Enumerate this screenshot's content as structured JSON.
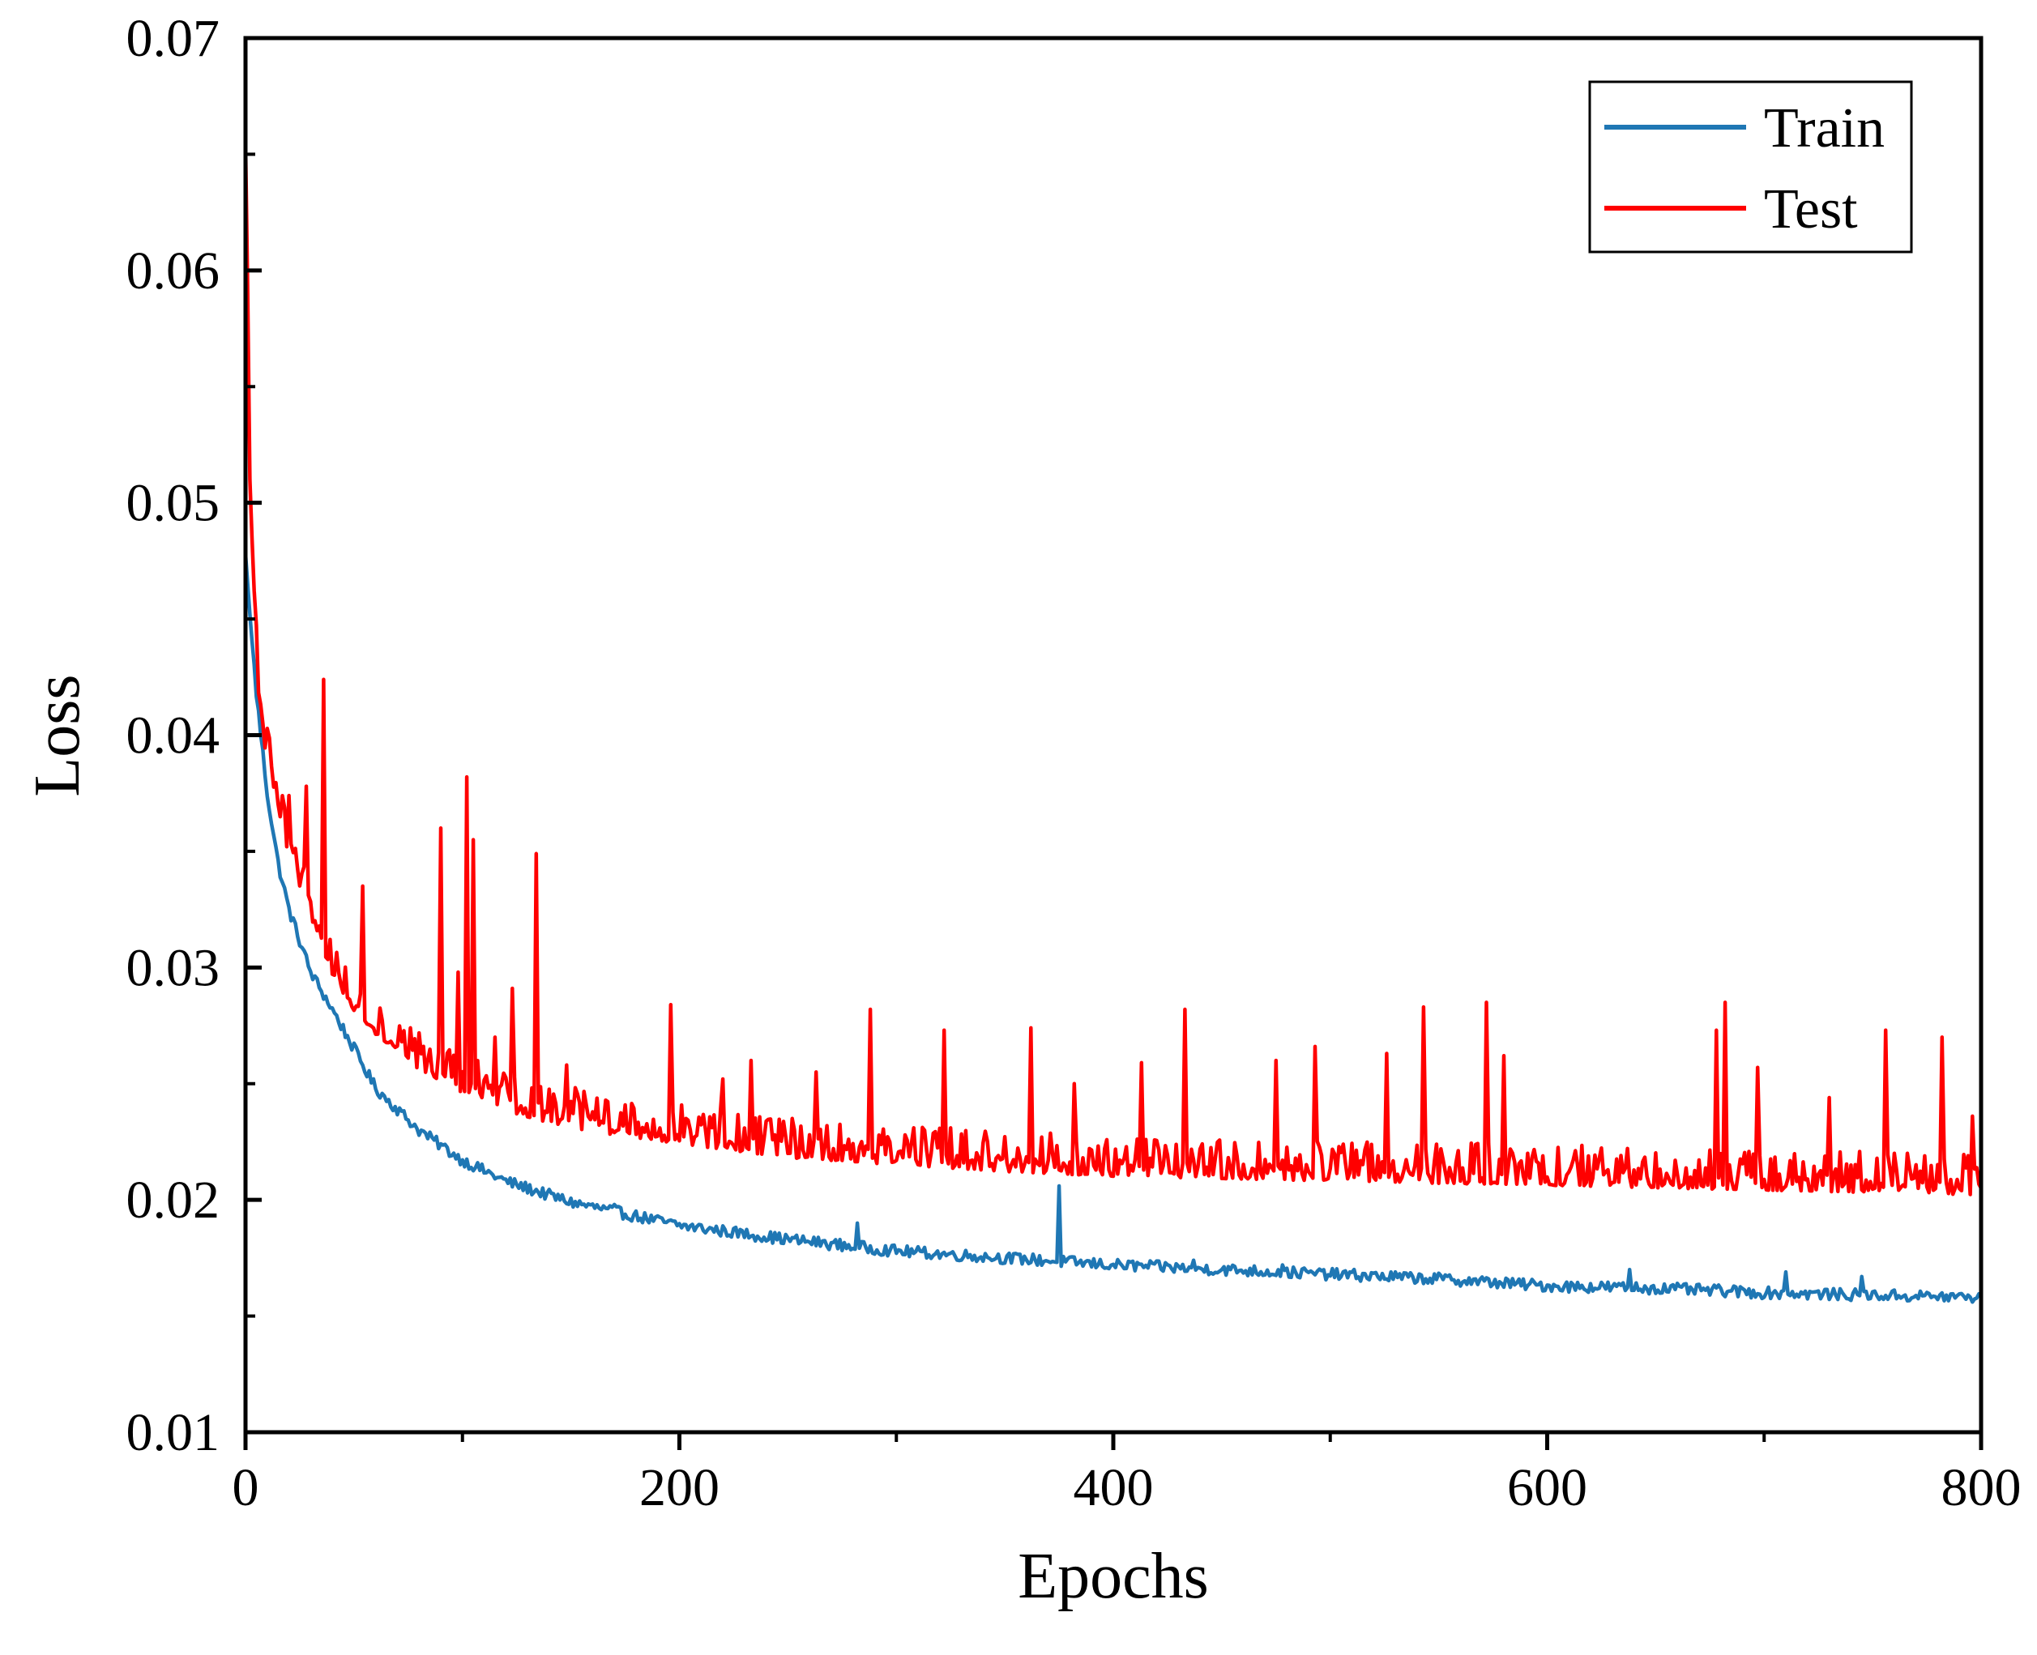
{
  "chart_data": {
    "type": "line",
    "title": "",
    "xlabel": "Epochs",
    "ylabel": "Loss",
    "xlim": [
      0,
      800
    ],
    "ylim": [
      0.01,
      0.07
    ],
    "xticks": [
      0,
      200,
      400,
      600,
      800
    ],
    "xtick_labels": [
      "0",
      "200",
      "400",
      "600",
      "800"
    ],
    "yticks": [
      0.01,
      0.02,
      0.03,
      0.04,
      0.05,
      0.06,
      0.07
    ],
    "ytick_labels": [
      "0.01",
      "0.02",
      "0.03",
      "0.04",
      "0.05",
      "0.06",
      "0.07"
    ],
    "x_minor_step": 100,
    "y_minor_step": 0.005,
    "grid": false,
    "legend_position": "top-right",
    "series": [
      {
        "name": "Train",
        "color": "#1f77b4",
        "anchors": [
          [
            0,
            0.0478
          ],
          [
            2,
            0.0452
          ],
          [
            5,
            0.0418
          ],
          [
            10,
            0.0375
          ],
          [
            15,
            0.0345
          ],
          [
            20,
            0.0325
          ],
          [
            30,
            0.0298
          ],
          [
            40,
            0.0282
          ],
          [
            50,
            0.0265
          ],
          [
            60,
            0.0248
          ],
          [
            80,
            0.023
          ],
          [
            100,
            0.0217
          ],
          [
            120,
            0.0208
          ],
          [
            150,
            0.0199
          ],
          [
            200,
            0.0189
          ],
          [
            250,
            0.0183
          ],
          [
            300,
            0.0178
          ],
          [
            350,
            0.0175
          ],
          [
            400,
            0.0172
          ],
          [
            450,
            0.017
          ],
          [
            500,
            0.0168
          ],
          [
            550,
            0.0166
          ],
          [
            600,
            0.0163
          ],
          [
            650,
            0.0162
          ],
          [
            700,
            0.016
          ],
          [
            750,
            0.0159
          ],
          [
            800,
            0.0158
          ]
        ],
        "noise": 0.00025,
        "spikes": [
          [
            170,
            0.0198
          ],
          [
            282,
            0.019
          ],
          [
            375,
            0.0206
          ],
          [
            437,
            0.0174
          ],
          [
            478,
            0.0172
          ],
          [
            638,
            0.017
          ],
          [
            710,
            0.0169
          ],
          [
            745,
            0.0167
          ]
        ]
      },
      {
        "name": "Test",
        "color": "#ff0000",
        "anchors": [
          [
            0,
            0.0655
          ],
          [
            1,
            0.059
          ],
          [
            2,
            0.051
          ],
          [
            4,
            0.046
          ],
          [
            6,
            0.042
          ],
          [
            10,
            0.039
          ],
          [
            20,
            0.0352
          ],
          [
            30,
            0.0325
          ],
          [
            40,
            0.03
          ],
          [
            50,
            0.0285
          ],
          [
            60,
            0.0275
          ],
          [
            80,
            0.026
          ],
          [
            100,
            0.025
          ],
          [
            120,
            0.0242
          ],
          [
            140,
            0.0237
          ],
          [
            160,
            0.0233
          ],
          [
            200,
            0.0228
          ],
          [
            250,
            0.0222
          ],
          [
            300,
            0.0219
          ],
          [
            350,
            0.0216
          ],
          [
            400,
            0.0214
          ],
          [
            500,
            0.0212
          ],
          [
            600,
            0.021
          ],
          [
            700,
            0.0208
          ],
          [
            800,
            0.0206
          ]
        ],
        "noise": 0.0011,
        "spikes": [
          [
            20,
            0.0374
          ],
          [
            28,
            0.0378
          ],
          [
            36,
            0.0424
          ],
          [
            54,
            0.0335
          ],
          [
            90,
            0.036
          ],
          [
            98,
            0.0298
          ],
          [
            102,
            0.0382
          ],
          [
            105,
            0.0355
          ],
          [
            115,
            0.027
          ],
          [
            123,
            0.0291
          ],
          [
            134,
            0.0349
          ],
          [
            148,
            0.0258
          ],
          [
            196,
            0.0284
          ],
          [
            220,
            0.0252
          ],
          [
            233,
            0.026
          ],
          [
            263,
            0.0255
          ],
          [
            288,
            0.0282
          ],
          [
            322,
            0.0273
          ],
          [
            362,
            0.0274
          ],
          [
            382,
            0.025
          ],
          [
            413,
            0.0259
          ],
          [
            433,
            0.0282
          ],
          [
            475,
            0.026
          ],
          [
            493,
            0.0266
          ],
          [
            526,
            0.0263
          ],
          [
            543,
            0.0283
          ],
          [
            572,
            0.0285
          ],
          [
            580,
            0.0262
          ],
          [
            678,
            0.0273
          ],
          [
            682,
            0.0285
          ],
          [
            697,
            0.0257
          ],
          [
            730,
            0.0244
          ],
          [
            756,
            0.0273
          ],
          [
            782,
            0.027
          ],
          [
            796,
            0.0236
          ]
        ]
      }
    ]
  }
}
